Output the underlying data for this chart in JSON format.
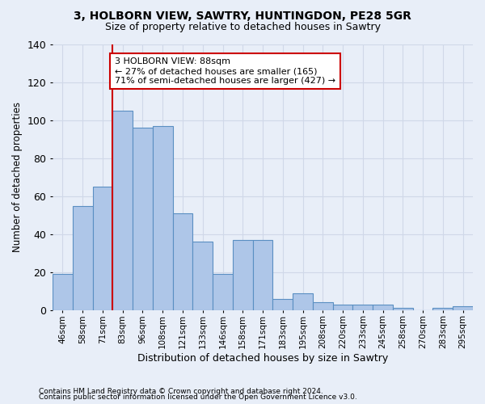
{
  "title1": "3, HOLBORN VIEW, SAWTRY, HUNTINGDON, PE28 5GR",
  "title2": "Size of property relative to detached houses in Sawtry",
  "xlabel": "Distribution of detached houses by size in Sawtry",
  "ylabel": "Number of detached properties",
  "footnote1": "Contains HM Land Registry data © Crown copyright and database right 2024.",
  "footnote2": "Contains public sector information licensed under the Open Government Licence v3.0.",
  "bar_labels": [
    "46sqm",
    "58sqm",
    "71sqm",
    "83sqm",
    "96sqm",
    "108sqm",
    "121sqm",
    "133sqm",
    "146sqm",
    "158sqm",
    "171sqm",
    "183sqm",
    "195sqm",
    "208sqm",
    "220sqm",
    "233sqm",
    "245sqm",
    "258sqm",
    "270sqm",
    "283sqm",
    "295sqm"
  ],
  "bar_values": [
    19,
    55,
    65,
    105,
    96,
    97,
    51,
    36,
    19,
    37,
    37,
    6,
    9,
    4,
    3,
    3,
    3,
    1,
    0,
    1,
    2
  ],
  "bar_color": "#aec6e8",
  "bar_edge_color": "#5a8fc2",
  "grid_color": "#d0d8e8",
  "bg_color": "#e8eef8",
  "vline_x": 2.5,
  "vline_color": "#cc0000",
  "annotation_text": "3 HOLBORN VIEW: 88sqm\n← 27% of detached houses are smaller (165)\n71% of semi-detached houses are larger (427) →",
  "annotation_box_color": "#ffffff",
  "annotation_border_color": "#cc0000",
  "ylim": [
    0,
    140
  ],
  "yticks": [
    0,
    20,
    40,
    60,
    80,
    100,
    120,
    140
  ]
}
